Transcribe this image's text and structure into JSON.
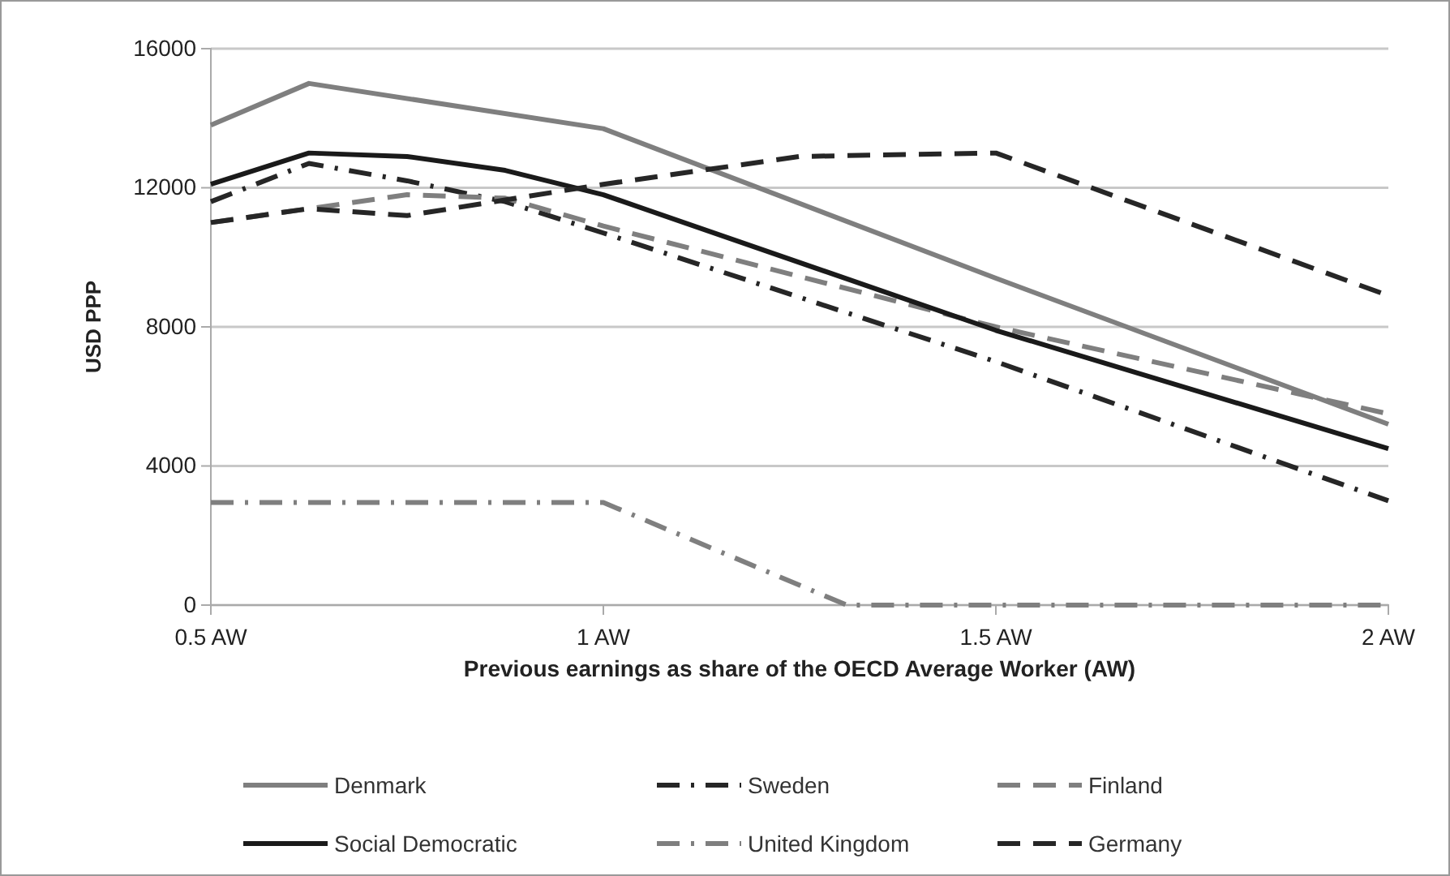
{
  "chart_data": {
    "type": "line",
    "xlabel": "Previous earnings as share of the OECD Average Worker (AW)",
    "ylabel": "USD PPP",
    "xlim": [
      0.5,
      2
    ],
    "xticks": [
      {
        "value": 0.5,
        "label": "0.5 AW"
      },
      {
        "value": 1,
        "label": "1 AW"
      },
      {
        "value": 1.5,
        "label": "1.5 AW"
      },
      {
        "value": 2,
        "label": "2 AW"
      }
    ],
    "ylim": [
      0,
      16000
    ],
    "yticks": [
      0,
      4000,
      8000,
      12000,
      16000
    ],
    "grid": "y",
    "legend": "bottom",
    "series": [
      {
        "name": "Denmark",
        "color": "#7f7f7f",
        "line_style": "solid",
        "x": [
          0.5,
          0.625,
          1,
          1.5,
          2
        ],
        "values": [
          13800,
          15000,
          13700,
          9400,
          5200
        ]
      },
      {
        "name": "Sweden",
        "color": "#262626",
        "line_style": "dashdot",
        "x": [
          0.5,
          0.625,
          0.75,
          0.875,
          1,
          1.5,
          2
        ],
        "values": [
          11600,
          12700,
          12200,
          11600,
          10700,
          7000,
          3000
        ]
      },
      {
        "name": "Finland",
        "color": "#7f7f7f",
        "line_style": "dashed",
        "x": [
          0.5,
          0.625,
          0.75,
          0.875,
          1,
          1.5,
          2
        ],
        "values": [
          11000,
          11400,
          11800,
          11700,
          10900,
          8000,
          5500
        ]
      },
      {
        "name": "Social Democratic",
        "color": "#1a1a1a",
        "line_style": "solid",
        "x": [
          0.5,
          0.625,
          0.75,
          0.875,
          1,
          1.5,
          2
        ],
        "values": [
          12100,
          13000,
          12900,
          12500,
          11800,
          7900,
          4500
        ]
      },
      {
        "name": "United Kingdom",
        "color": "#7f7f7f",
        "line_style": "dashdot",
        "x": [
          0.5,
          1,
          1.31,
          2
        ],
        "values": [
          2950,
          2950,
          0,
          0
        ]
      },
      {
        "name": "Germany",
        "color": "#262626",
        "line_style": "dashed",
        "x": [
          0.5,
          0.625,
          0.75,
          1,
          1.25,
          1.5,
          2
        ],
        "values": [
          11000,
          11400,
          11200,
          12100,
          12900,
          13000,
          8900
        ]
      }
    ]
  }
}
